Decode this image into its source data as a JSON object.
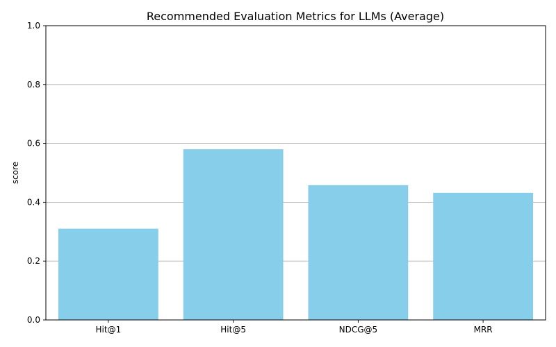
{
  "chart_data": {
    "type": "bar",
    "title": "Recommended Evaluation Metrics for LLMs (Average)",
    "xlabel": "",
    "ylabel": "score",
    "categories": [
      "Hit@1",
      "Hit@5",
      "NDCG@5",
      "MRR"
    ],
    "values": [
      0.31,
      0.58,
      0.458,
      0.432
    ],
    "ylim": [
      0,
      1.0
    ],
    "yticks": [
      "0.0",
      "0.2",
      "0.4",
      "0.6",
      "0.8",
      "1.0"
    ],
    "grid": "y-axis",
    "bar_color": "#87CEEB",
    "grid_color": "#b0b0b0"
  }
}
